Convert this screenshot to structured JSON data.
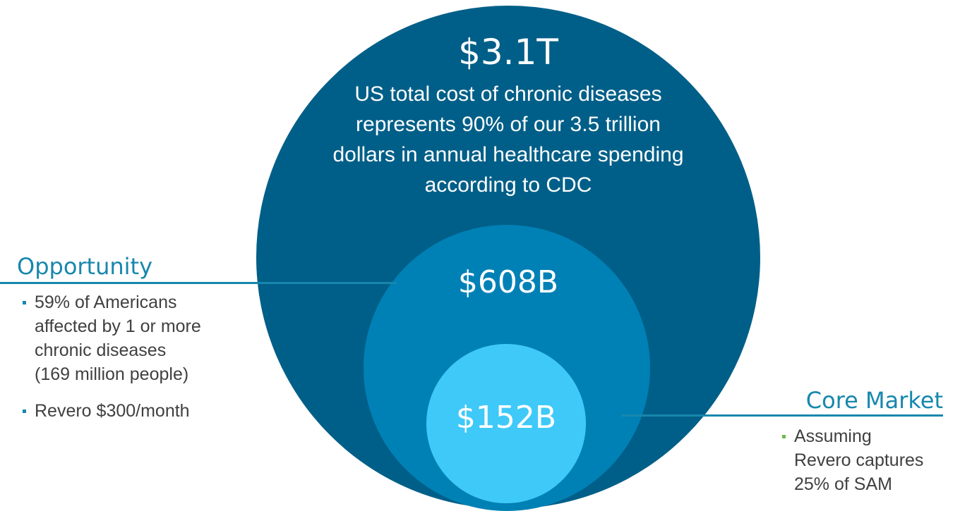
{
  "colors": {
    "outer_circle": "#005f88",
    "middle_circle": "#0081b6",
    "inner_circle": "#3fc9f9",
    "accent_teal": "#1787ad",
    "text_body": "#404040",
    "bullet_left": "#1787ad",
    "bullet_right": "#70b94a"
  },
  "outer_circle": {
    "value": "$3.1T",
    "description_lines": [
      "US total cost of chronic diseases",
      "represents 90% of our 3.5 trillion",
      "dollars in annual healthcare spending",
      "according to CDC"
    ]
  },
  "middle_circle": {
    "value": "$608B"
  },
  "inner_circle": {
    "value": "$152B"
  },
  "opportunity": {
    "heading": "Opportunity",
    "bullets": [
      {
        "lines": [
          "59% of Americans",
          "affected by 1 or more",
          "chronic diseases",
          "(169 million people)"
        ]
      },
      {
        "lines": [
          "Revero $300/month"
        ]
      }
    ]
  },
  "core_market": {
    "heading": "Core Market",
    "bullets": [
      {
        "lines": [
          "Assuming",
          "Revero captures",
          "25% of SAM"
        ]
      }
    ]
  }
}
